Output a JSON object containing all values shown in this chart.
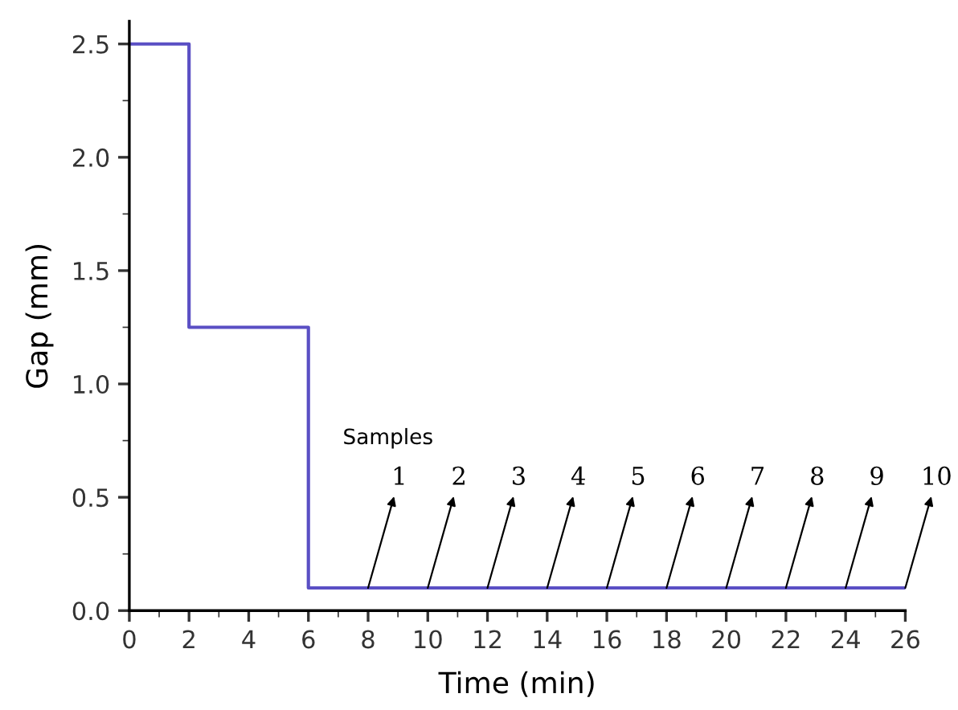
{
  "chart_data": {
    "type": "step",
    "xlabel": "Time (min)",
    "ylabel": "Gap (mm)",
    "x": [
      0,
      2,
      6,
      26
    ],
    "series": [
      {
        "color": "#5a4fc4",
        "values": [
          2.5,
          1.25,
          0.1,
          0.1
        ]
      }
    ],
    "xlim": [
      0,
      26
    ],
    "ylim": [
      0,
      2.6
    ],
    "xticks": [
      0,
      2,
      4,
      6,
      8,
      10,
      12,
      14,
      16,
      18,
      20,
      22,
      24,
      26
    ],
    "yticks": [
      {
        "value": 0,
        "label": "0.0"
      },
      {
        "value": 0.5,
        "label": "0.5"
      },
      {
        "value": 1,
        "label": "1.0"
      },
      {
        "value": 1.5,
        "label": "1.5"
      },
      {
        "value": 2,
        "label": "2.0"
      },
      {
        "value": 2.5,
        "label": "2.5"
      }
    ],
    "grid": false,
    "legend": false,
    "annotations": [
      "Samples",
      {
        "text": "1",
        "x": 8,
        "y": 0.1
      },
      {
        "text": "2",
        "x": 10,
        "y": 0.1
      },
      {
        "text": "3",
        "x": 12,
        "y": 0.1
      },
      {
        "text": "4",
        "x": 14,
        "y": 0.1
      },
      {
        "text": "5",
        "x": 16,
        "y": 0.1
      },
      {
        "text": "6",
        "x": 18,
        "y": 0.1
      },
      {
        "text": "7",
        "x": 20,
        "y": 0.1
      },
      {
        "text": "8",
        "x": 22,
        "y": 0.1
      },
      {
        "text": "9",
        "x": 24,
        "y": 0.1
      },
      {
        "text": "10",
        "x": 26,
        "y": 0.1
      }
    ]
  }
}
